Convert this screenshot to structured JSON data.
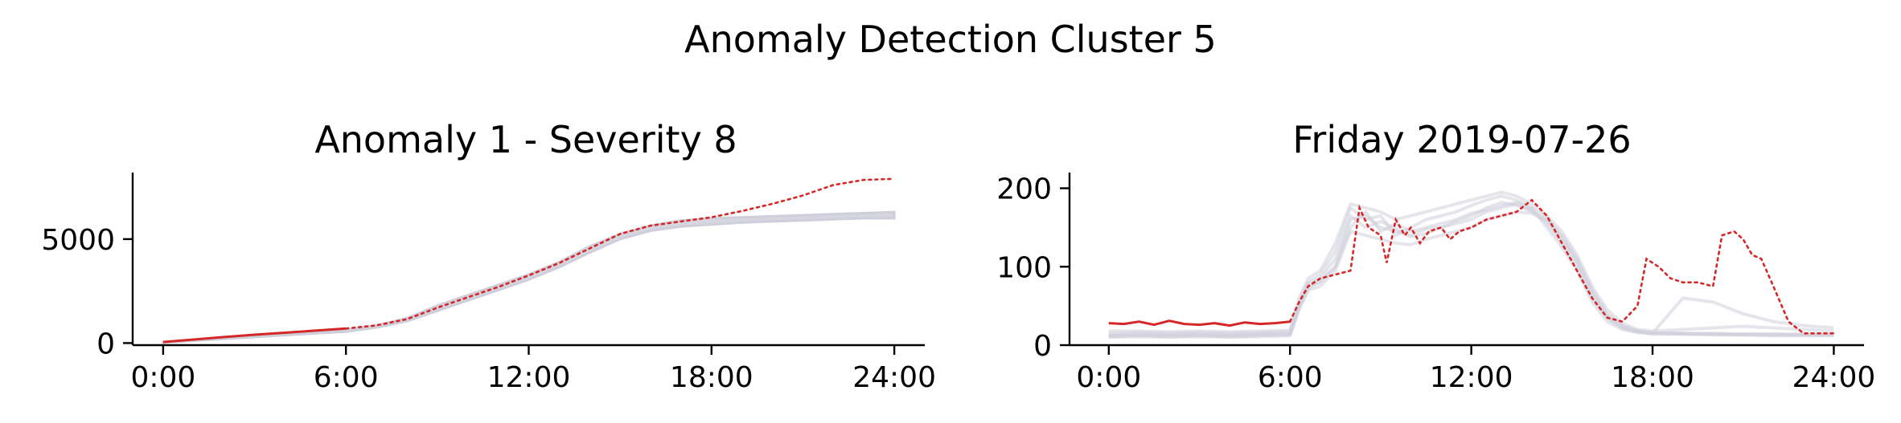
{
  "figure": {
    "title": "Anomaly Detection Cluster 5"
  },
  "colors": {
    "anomaly": "#d62728",
    "reference": "#cfcfdc"
  },
  "chart_data": [
    {
      "type": "line",
      "title": "Anomaly 1 - Severity 8",
      "xlabel": "",
      "ylabel": "",
      "xlim": [
        -1,
        25
      ],
      "ylim": [
        -100,
        8200
      ],
      "xticks": [
        0,
        6,
        12,
        18,
        24
      ],
      "xticklabels": [
        "0:00",
        "6:00",
        "12:00",
        "18:00",
        "24:00"
      ],
      "yticks": [
        0,
        5000
      ],
      "yticklabels": [
        "0",
        "5000"
      ],
      "grid": false,
      "reference_band": {
        "x": [
          0,
          2,
          4,
          6,
          7,
          8,
          9,
          10,
          11,
          12,
          13,
          14,
          15,
          16,
          17,
          18,
          19,
          20,
          21,
          22,
          23,
          24
        ],
        "lower": [
          20,
          200,
          380,
          550,
          750,
          1050,
          1550,
          2050,
          2550,
          3050,
          3650,
          4350,
          5000,
          5400,
          5600,
          5700,
          5800,
          5850,
          5900,
          5950,
          6000,
          6000
        ],
        "upper": [
          60,
          260,
          450,
          640,
          850,
          1200,
          1800,
          2300,
          2800,
          3300,
          3900,
          4650,
          5250,
          5650,
          5900,
          6000,
          6050,
          6100,
          6150,
          6200,
          6250,
          6300
        ]
      },
      "observed": {
        "x": [
          0,
          1,
          2,
          3,
          4,
          5,
          6
        ],
        "y": [
          50,
          170,
          290,
          400,
          500,
          600,
          700
        ]
      },
      "forecast": {
        "x": [
          6,
          7,
          8,
          9,
          10,
          11,
          12,
          13,
          14,
          15,
          16,
          17,
          18,
          19,
          20,
          21,
          22,
          23,
          24
        ],
        "y": [
          700,
          850,
          1150,
          1700,
          2200,
          2700,
          3250,
          3850,
          4550,
          5250,
          5650,
          5850,
          6050,
          6350,
          6700,
          7100,
          7600,
          7850,
          7900
        ]
      }
    },
    {
      "type": "line",
      "title": "Friday 2019-07-26",
      "xlabel": "",
      "ylabel": "",
      "xlim": [
        -1.3,
        25
      ],
      "ylim": [
        0,
        220
      ],
      "xticks": [
        0,
        6,
        12,
        18,
        24
      ],
      "xticklabels": [
        "0:00",
        "6:00",
        "12:00",
        "18:00",
        "24:00"
      ],
      "yticks": [
        0,
        100,
        200
      ],
      "yticklabels": [
        "0",
        "100",
        "200"
      ],
      "grid": false,
      "reference_profiles": [
        {
          "x": [
            0,
            1,
            2,
            3,
            4,
            5,
            6,
            6.3,
            6.6,
            7,
            7.5,
            8,
            8.5,
            9,
            9.5,
            10,
            10.5,
            11,
            11.5,
            12,
            12.5,
            13,
            13.5,
            14,
            14.5,
            15,
            15.5,
            16,
            16.5,
            17,
            17.5,
            18,
            19,
            20,
            21,
            22,
            23,
            24
          ],
          "y": [
            12,
            13,
            12,
            13,
            12,
            14,
            14,
            50,
            75,
            80,
            100,
            160,
            165,
            150,
            145,
            140,
            148,
            150,
            155,
            160,
            170,
            175,
            180,
            170,
            160,
            140,
            110,
            70,
            40,
            25,
            18,
            16,
            15,
            15,
            14,
            14,
            14,
            14
          ]
        },
        {
          "x": [
            0,
            1,
            2,
            3,
            4,
            5,
            6,
            6.3,
            6.6,
            7,
            7.5,
            8,
            8.5,
            9,
            9.5,
            10,
            10.5,
            11,
            11.5,
            12,
            12.5,
            13,
            13.5,
            14,
            14.5,
            15,
            15.5,
            16,
            16.5,
            17,
            17.5,
            18,
            19,
            20,
            21,
            22,
            23,
            24
          ],
          "y": [
            15,
            16,
            15,
            16,
            15,
            16,
            17,
            55,
            80,
            90,
            120,
            175,
            160,
            165,
            140,
            150,
            160,
            165,
            170,
            178,
            185,
            190,
            185,
            175,
            150,
            125,
            95,
            55,
            30,
            20,
            16,
            15,
            14,
            14,
            13,
            13,
            13,
            13
          ]
        },
        {
          "x": [
            0,
            1,
            2,
            3,
            4,
            5,
            6,
            6.3,
            6.6,
            7,
            7.5,
            8,
            8.5,
            9,
            9.5,
            10,
            10.5,
            11,
            11.5,
            12,
            12.5,
            13,
            13.5,
            14,
            14.5,
            15,
            15.5,
            16,
            16.5,
            17,
            17.5,
            18,
            19,
            20,
            21,
            22,
            23,
            24
          ],
          "y": [
            10,
            11,
            10,
            11,
            10,
            11,
            12,
            45,
            70,
            75,
            95,
            145,
            140,
            135,
            130,
            128,
            135,
            140,
            145,
            150,
            160,
            165,
            170,
            168,
            158,
            135,
            105,
            65,
            35,
            22,
            17,
            14,
            14,
            13,
            13,
            12,
            12,
            12
          ]
        },
        {
          "x": [
            0,
            1,
            2,
            3,
            4,
            5,
            6,
            6.3,
            6.6,
            7,
            7.5,
            8,
            8.5,
            9,
            9.5,
            10,
            10.5,
            11,
            11.5,
            12,
            12.5,
            13,
            13.5,
            14,
            14.5,
            15,
            15.5,
            16,
            16.5,
            17,
            17.5,
            18,
            19,
            20,
            21,
            22,
            23,
            24
          ],
          "y": [
            18,
            18,
            17,
            18,
            17,
            18,
            19,
            60,
            85,
            95,
            130,
            180,
            175,
            170,
            160,
            165,
            170,
            175,
            180,
            185,
            190,
            195,
            190,
            180,
            165,
            145,
            115,
            75,
            45,
            28,
            20,
            18,
            20,
            22,
            24,
            22,
            20,
            18
          ]
        },
        {
          "x": [
            0,
            1,
            2,
            3,
            4,
            5,
            6,
            6.3,
            6.6,
            7,
            7.5,
            8,
            8.5,
            9,
            9.5,
            10,
            10.5,
            11,
            11.5,
            12,
            12.5,
            13,
            13.5,
            14,
            14.5,
            15,
            15.5,
            16,
            16.5,
            17,
            17.5,
            18,
            19,
            20,
            21,
            22,
            23,
            24
          ],
          "y": [
            13,
            14,
            13,
            14,
            13,
            14,
            15,
            50,
            78,
            85,
            110,
            165,
            150,
            158,
            148,
            138,
            142,
            150,
            158,
            165,
            175,
            182,
            178,
            172,
            155,
            130,
            100,
            60,
            35,
            22,
            17,
            15,
            15,
            14,
            14,
            14,
            13,
            13
          ]
        },
        {
          "x": [
            0,
            1,
            2,
            3,
            4,
            5,
            6,
            6.3,
            6.6,
            7,
            7.5,
            8,
            8.5,
            9,
            9.5,
            10,
            10.5,
            11,
            11.5,
            12,
            12.5,
            13,
            13.5,
            14,
            14.5,
            15,
            15.5,
            16,
            16.5,
            17,
            17.5,
            18,
            19,
            20,
            21,
            22,
            23,
            24
          ],
          "y": [
            11,
            12,
            11,
            12,
            11,
            12,
            13,
            48,
            72,
            82,
            100,
            150,
            170,
            145,
            155,
            145,
            150,
            155,
            160,
            168,
            172,
            178,
            182,
            175,
            162,
            138,
            108,
            68,
            38,
            24,
            18,
            15,
            60,
            55,
            40,
            30,
            25,
            22
          ]
        }
      ],
      "observed": {
        "x": [
          0,
          0.5,
          1,
          1.5,
          2,
          2.5,
          3,
          3.5,
          4,
          4.5,
          5,
          5.5,
          6
        ],
        "y": [
          28,
          27,
          30,
          26,
          31,
          27,
          26,
          28,
          25,
          29,
          27,
          28,
          30
        ]
      },
      "forecast": {
        "x": [
          6,
          6.3,
          6.6,
          7,
          7.5,
          8,
          8.3,
          8.6,
          9,
          9.2,
          9.5,
          9.8,
          10,
          10.3,
          10.6,
          11,
          11.3,
          11.6,
          12,
          12.5,
          13,
          13.5,
          14,
          14.5,
          15,
          15.5,
          16,
          16.5,
          17,
          17.5,
          17.8,
          18.2,
          18.6,
          19,
          19.5,
          20,
          20.3,
          20.7,
          21,
          21.3,
          21.6,
          22,
          22.5,
          23,
          24
        ],
        "y": [
          30,
          55,
          75,
          85,
          90,
          95,
          175,
          150,
          140,
          105,
          160,
          140,
          150,
          130,
          145,
          150,
          135,
          145,
          150,
          160,
          165,
          170,
          185,
          165,
          130,
          95,
          60,
          35,
          30,
          50,
          110,
          100,
          85,
          80,
          80,
          75,
          140,
          145,
          135,
          115,
          110,
          75,
          30,
          15,
          15
        ]
      }
    }
  ]
}
